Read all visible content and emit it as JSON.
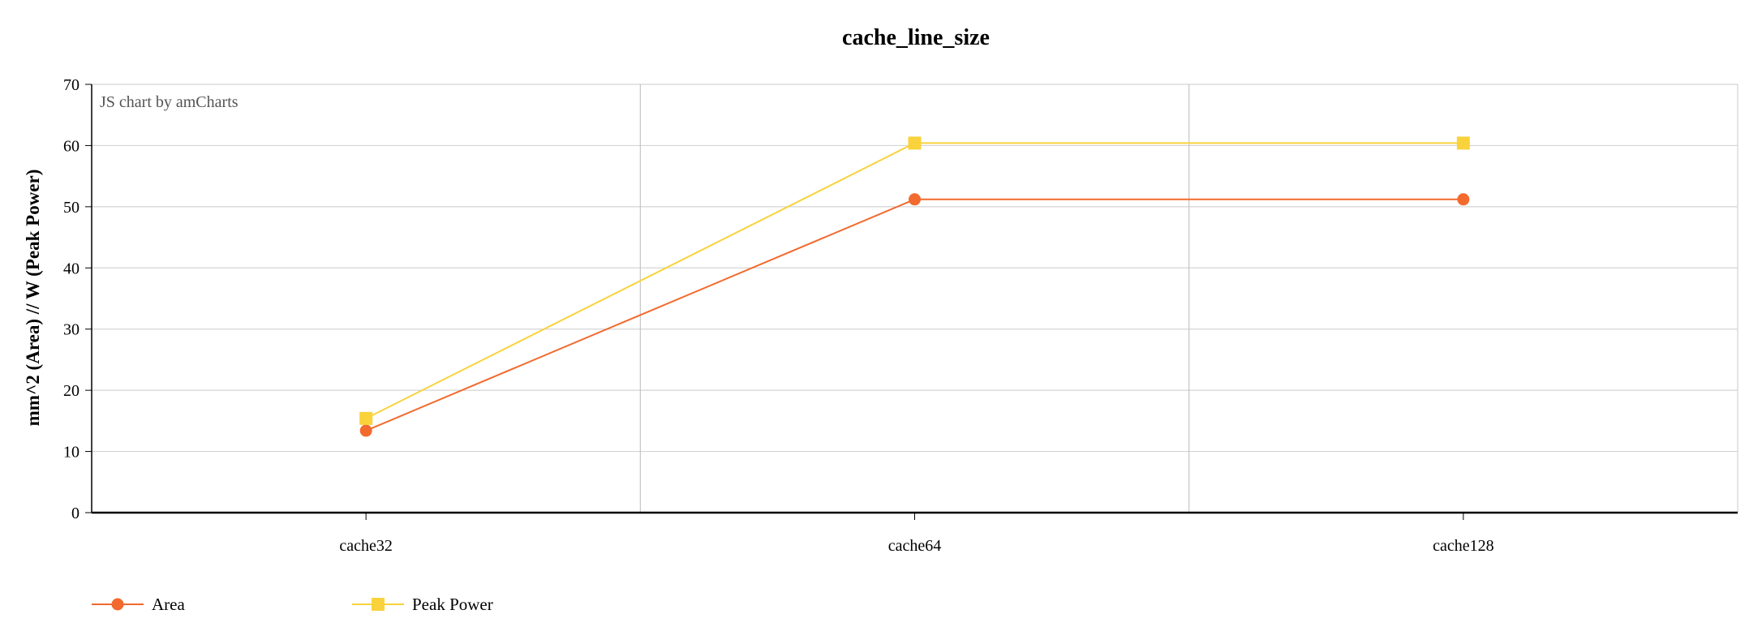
{
  "chart_data": {
    "type": "line",
    "title": "cache_line_size",
    "xlabel": "",
    "ylabel": "mm^2 (Area) // W (Peak Power)",
    "categories": [
      "cache32",
      "cache64",
      "cache128"
    ],
    "ylim": [
      0,
      70
    ],
    "yticks": [
      0,
      10,
      20,
      30,
      40,
      50,
      60,
      70
    ],
    "grid": true,
    "legend_position": "bottom-left",
    "credit": "JS chart by amCharts",
    "series": [
      {
        "name": "Area",
        "values": [
          13.4,
          51.2,
          51.2
        ],
        "color": "#f26a2e",
        "marker": "circle"
      },
      {
        "name": "Peak Power",
        "values": [
          15.4,
          60.4,
          60.4
        ],
        "color": "#f9d23c",
        "marker": "square"
      }
    ]
  }
}
